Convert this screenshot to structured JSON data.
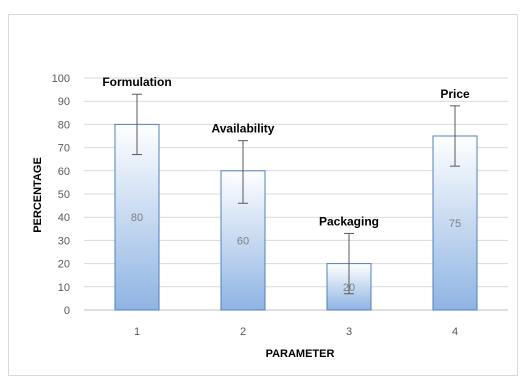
{
  "chart_data": {
    "type": "bar",
    "title": "",
    "xlabel": "PARAMETER",
    "ylabel": "PERCENTAGE",
    "categories": [
      "1",
      "2",
      "3",
      "4"
    ],
    "values": [
      80,
      60,
      20,
      75
    ],
    "bar_names": [
      "Formulation",
      "Availability",
      "Packaging",
      "Price"
    ],
    "error_bars": [
      {
        "low": 67,
        "high": 93
      },
      {
        "low": 46,
        "high": 73
      },
      {
        "low": 7,
        "high": 33
      },
      {
        "low": 62,
        "high": 88
      }
    ],
    "ylim": [
      0,
      100
    ],
    "yticks": [
      0,
      10,
      20,
      30,
      40,
      50,
      60,
      70,
      80,
      90,
      100
    ],
    "grid": true,
    "legend": "none",
    "colors": {
      "bar_top": "#ffffff",
      "bar_bottom": "#8fb4e3",
      "bar_border": "#4f81bd",
      "grid": "#d9d9d9",
      "error_bar": "#595959"
    }
  }
}
